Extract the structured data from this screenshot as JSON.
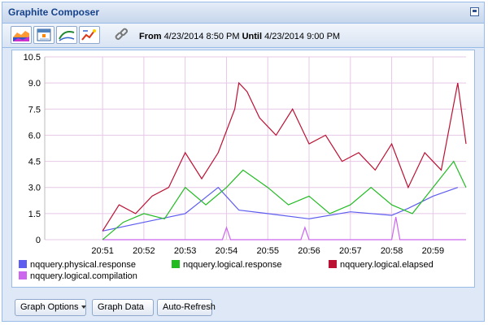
{
  "window": {
    "title": "Graphite Composer"
  },
  "toolbar": {
    "from_label": "From",
    "from_value": "4/23/2014 8:50 PM",
    "until_label": "Until",
    "until_value": "4/23/2014 9:00 PM",
    "icons": [
      "graph-type-icon",
      "calendar-icon",
      "line-mode-icon",
      "options-icon",
      "link-icon"
    ]
  },
  "buttons": {
    "graph_options": "Graph Options",
    "graph_data": "Graph Data",
    "auto_refresh": "Auto-Refresh"
  },
  "colors": {
    "physical_response": "#5d5df0",
    "logical_response": "#22bb22",
    "logical_elapsed": "#bb1133",
    "logical_compilation": "#cc66ee",
    "grid": "#e6c8e6"
  },
  "chart_data": {
    "type": "line",
    "title": "",
    "xlabel": "",
    "ylabel": "",
    "x_ticks": [
      "20:51",
      "20:52",
      "20:53",
      "20:54",
      "20:55",
      "20:56",
      "20:57",
      "20:58",
      "20:59"
    ],
    "x_range": [
      "20:49.6",
      "20:59.8"
    ],
    "y_ticks": [
      "0",
      "1.5",
      "3.0",
      "4.5",
      "6.0",
      "7.5",
      "9.0",
      "10.5"
    ],
    "ylim": [
      0,
      10.5
    ],
    "grid": true,
    "legend_placement": "bottom",
    "legend": [
      "nqquery.physical.response",
      "nqquery.logical.response",
      "nqquery.logical.elapsed",
      "nqquery.logical.compilation"
    ],
    "series": [
      {
        "name": "nqquery.physical.response",
        "x": [
          "20:51.0",
          "20:52.0",
          "20:53.0",
          "20:53.8",
          "20:54.3",
          "20:55.0",
          "20:56.0",
          "20:57.0",
          "20:58.0",
          "20:58.4",
          "20:59.0",
          "20:59.6"
        ],
        "values": [
          0.5,
          1.0,
          1.5,
          3.0,
          1.7,
          1.5,
          1.2,
          1.6,
          1.4,
          1.8,
          2.5,
          3.0
        ]
      },
      {
        "name": "nqquery.logical.response",
        "x": [
          "20:51.0",
          "20:51.5",
          "20:52.0",
          "20:52.5",
          "20:53.0",
          "20:53.5",
          "20:54.0",
          "20:54.4",
          "20:55.0",
          "20:55.5",
          "20:56.0",
          "20:56.5",
          "20:57.0",
          "20:57.5",
          "20:58.0",
          "20:58.5",
          "20:59.0",
          "20:59.5",
          "20:59.8"
        ],
        "values": [
          0.0,
          1.0,
          1.5,
          1.2,
          3.0,
          2.0,
          3.0,
          4.0,
          3.0,
          2.0,
          2.5,
          1.5,
          2.0,
          3.0,
          2.0,
          1.5,
          3.0,
          4.5,
          3.0
        ]
      },
      {
        "name": "nqquery.logical.elapsed",
        "x": [
          "20:51.0",
          "20:51.4",
          "20:51.8",
          "20:52.2",
          "20:52.6",
          "20:53.0",
          "20:53.4",
          "20:53.8",
          "20:54.2",
          "20:54.3",
          "20:54.5",
          "20:54.8",
          "20:55.2",
          "20:55.6",
          "20:56.0",
          "20:56.4",
          "20:56.8",
          "20:57.2",
          "20:57.6",
          "20:58.0",
          "20:58.4",
          "20:58.8",
          "20:59.2",
          "20:59.6",
          "20:59.8"
        ],
        "values": [
          0.5,
          2.0,
          1.5,
          2.5,
          3.0,
          5.0,
          3.5,
          5.0,
          7.5,
          9.0,
          8.5,
          7.0,
          6.0,
          7.5,
          5.5,
          6.0,
          4.5,
          5.0,
          4.0,
          5.5,
          3.0,
          5.0,
          4.0,
          9.0,
          5.5
        ]
      },
      {
        "name": "nqquery.logical.compilation",
        "x": [
          "20:51.0",
          "20:53.9",
          "20:54.0",
          "20:54.1",
          "20:55.8",
          "20:55.9",
          "20:56.0",
          "20:58.0",
          "20:58.1",
          "20:58.2",
          "20:59.8"
        ],
        "values": [
          0,
          0,
          0.7,
          0,
          0,
          0.7,
          0,
          0,
          1.3,
          0,
          0
        ]
      }
    ]
  }
}
